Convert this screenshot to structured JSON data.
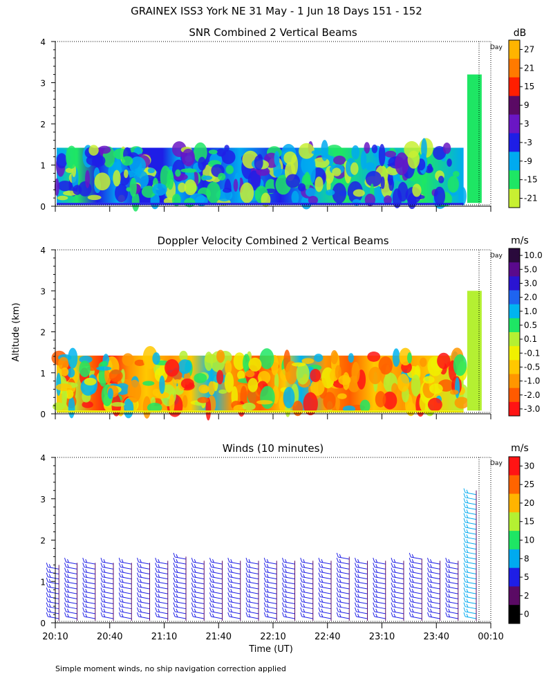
{
  "figure": {
    "title": "GRAINEX ISS3 York NE  31 May -  1 Jun 18 Days 151 - 152",
    "ylabel": "Altitude (km)",
    "xlabel": "Time (UT)",
    "footnote": "Simple moment winds, no ship navigation correction applied",
    "day_marker": "Day"
  },
  "chart_data": [
    {
      "type": "heatmap",
      "title": "SNR Combined 2 Vertical Beams",
      "xlabel": "Time (UT)",
      "ylabel": "Altitude (km)",
      "x_ticks": [
        "20:10",
        "20:40",
        "21:10",
        "21:40",
        "22:10",
        "22:40",
        "23:10",
        "23:40",
        "00:10"
      ],
      "xlim": [
        "20:10",
        "00:10"
      ],
      "y_ticks": [
        0,
        1,
        2,
        3,
        4
      ],
      "ylim": [
        0,
        4
      ],
      "colorbar": {
        "unit": "dB",
        "labels": [
          "27",
          "21",
          "15",
          "9",
          "3",
          "-3",
          "-9",
          "-15",
          "-21"
        ],
        "colors": [
          "#ffb400",
          "#ff7a00",
          "#ff1e00",
          "#5a0a64",
          "#6a16c4",
          "#1e1ee6",
          "#00aaf0",
          "#1ee664",
          "#c8f032"
        ]
      },
      "series": [
        {
          "time": "20:10-23:55",
          "altitude_km": [
            0.08,
            1.42
          ],
          "dominant_levels_dB": [
            "-9",
            "-3",
            "-15"
          ]
        },
        {
          "time": "23:57-00:05",
          "altitude_km": [
            0.08,
            3.2
          ],
          "dominant_levels_dB": [
            "-15",
            "-21"
          ]
        }
      ]
    },
    {
      "type": "heatmap",
      "title": "Doppler Velocity Combined 2 Vertical Beams",
      "xlabel": "Time (UT)",
      "ylabel": "Altitude (km)",
      "x_ticks": [
        "20:10",
        "20:40",
        "21:10",
        "21:40",
        "22:10",
        "22:40",
        "23:10",
        "23:40",
        "00:10"
      ],
      "xlim": [
        "20:10",
        "00:10"
      ],
      "y_ticks": [
        0,
        1,
        2,
        3,
        4
      ],
      "ylim": [
        0,
        4
      ],
      "colorbar": {
        "unit": "m/s",
        "labels": [
          "10.0",
          "5.0",
          "3.0",
          "2.0",
          "1.0",
          "0.5",
          "0.1",
          "-0.1",
          "-0.5",
          "-1.0",
          "-2.0",
          "-3.0"
        ],
        "colors": [
          "#2a0a3c",
          "#5a0a8c",
          "#2a14d2",
          "#1e64f0",
          "#00b4f0",
          "#1ee664",
          "#b4f032",
          "#f0f000",
          "#ffc800",
          "#ff9600",
          "#ff5a00",
          "#ff1414"
        ]
      },
      "series": [
        {
          "time": "20:10-23:55",
          "altitude_km": [
            0.08,
            1.42
          ],
          "dominant_levels_ms": [
            "-0.5",
            "-1.0",
            "-2.0",
            "0.1"
          ]
        },
        {
          "time": "23:57-00:05",
          "altitude_km": [
            0.08,
            3.0
          ],
          "dominant_levels_ms": [
            "0.1"
          ]
        }
      ]
    },
    {
      "type": "scatter",
      "title": "Winds (10 minutes)",
      "xlabel": "Time (UT)",
      "ylabel": "Altitude (km)",
      "x_ticks": [
        "20:10",
        "20:40",
        "21:10",
        "21:40",
        "22:10",
        "22:40",
        "23:10",
        "23:40",
        "00:10"
      ],
      "xlim": [
        "20:10",
        "00:10"
      ],
      "y_ticks": [
        0,
        1,
        2,
        3,
        4
      ],
      "ylim": [
        0,
        4
      ],
      "colorbar": {
        "unit": "m/s",
        "labels": [
          "30",
          "25",
          "20",
          "15",
          "10",
          "8",
          "5",
          "2",
          "0"
        ],
        "colors": [
          "#ff1414",
          "#ff6400",
          "#ffb400",
          "#b4f032",
          "#1ee664",
          "#00aaf0",
          "#1e1ee6",
          "#5a0a64",
          "#000000"
        ]
      },
      "series": [
        {
          "name": "wind barbs",
          "times": [
            "20:12",
            "20:22",
            "20:32",
            "20:42",
            "20:52",
            "21:02",
            "21:12",
            "21:22",
            "21:32",
            "21:42",
            "21:52",
            "22:02",
            "22:12",
            "22:22",
            "22:32",
            "22:42",
            "22:52",
            "23:02",
            "23:12",
            "23:22",
            "23:32",
            "23:42",
            "23:52",
            "00:02"
          ],
          "top_km": [
            1.4,
            1.45,
            1.45,
            1.45,
            1.45,
            1.45,
            1.5,
            1.6,
            1.5,
            1.5,
            1.5,
            1.5,
            1.5,
            1.5,
            1.5,
            1.5,
            1.6,
            1.5,
            1.5,
            1.5,
            1.55,
            1.5,
            1.5,
            3.2
          ],
          "speed_class_ms": "2-8"
        }
      ]
    }
  ]
}
